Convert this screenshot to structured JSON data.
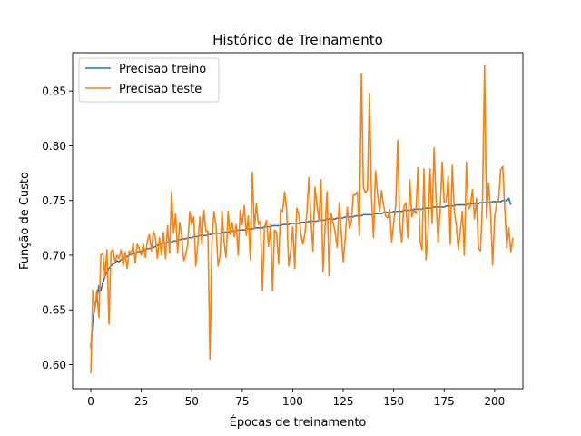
{
  "chart_data": {
    "type": "line",
    "title": "Histórico de Treinamento",
    "xlabel": "Épocas de treinamento",
    "ylabel": "Função de Custo",
    "xlim": [
      -9,
      214
    ],
    "ylim": [
      0.578,
      0.885
    ],
    "x_ticks": [
      0,
      25,
      50,
      75,
      100,
      125,
      150,
      175,
      200
    ],
    "y_ticks": [
      0.6,
      0.65,
      0.7,
      0.75,
      0.8,
      0.85
    ],
    "y_tick_labels": [
      "0.60",
      "0.65",
      "0.70",
      "0.75",
      "0.80",
      "0.85"
    ],
    "grid": false,
    "legend_position": "upper left",
    "x_start": 0,
    "series": [
      {
        "name": "Precisao treino",
        "color": "#1f77b4",
        "values": [
          0.615,
          0.64,
          0.652,
          0.66,
          0.672,
          0.668,
          0.675,
          0.68,
          0.685,
          0.688,
          0.69,
          0.692,
          0.693,
          0.695,
          0.694,
          0.696,
          0.697,
          0.698,
          0.699,
          0.7,
          0.701,
          0.701,
          0.702,
          0.703,
          0.703,
          0.704,
          0.704,
          0.705,
          0.706,
          0.706,
          0.707,
          0.707,
          0.708,
          0.709,
          0.71,
          0.71,
          0.711,
          0.711,
          0.712,
          0.712,
          0.712,
          0.713,
          0.713,
          0.714,
          0.714,
          0.715,
          0.715,
          0.715,
          0.716,
          0.716,
          0.716,
          0.717,
          0.717,
          0.717,
          0.718,
          0.718,
          0.718,
          0.718,
          0.719,
          0.719,
          0.719,
          0.72,
          0.72,
          0.72,
          0.72,
          0.721,
          0.721,
          0.721,
          0.721,
          0.722,
          0.722,
          0.722,
          0.722,
          0.723,
          0.723,
          0.723,
          0.723,
          0.724,
          0.724,
          0.724,
          0.724,
          0.725,
          0.725,
          0.725,
          0.725,
          0.725,
          0.726,
          0.726,
          0.726,
          0.726,
          0.727,
          0.727,
          0.727,
          0.727,
          0.727,
          0.728,
          0.728,
          0.728,
          0.728,
          0.729,
          0.729,
          0.729,
          0.729,
          0.729,
          0.73,
          0.73,
          0.73,
          0.73,
          0.731,
          0.731,
          0.731,
          0.731,
          0.731,
          0.732,
          0.732,
          0.732,
          0.732,
          0.733,
          0.733,
          0.733,
          0.733,
          0.733,
          0.734,
          0.734,
          0.734,
          0.734,
          0.735,
          0.735,
          0.735,
          0.735,
          0.735,
          0.736,
          0.736,
          0.736,
          0.736,
          0.737,
          0.737,
          0.737,
          0.737,
          0.737,
          0.738,
          0.738,
          0.738,
          0.738,
          0.738,
          0.739,
          0.739,
          0.739,
          0.739,
          0.739,
          0.74,
          0.74,
          0.74,
          0.74,
          0.74,
          0.741,
          0.741,
          0.741,
          0.741,
          0.741,
          0.742,
          0.742,
          0.742,
          0.742,
          0.742,
          0.743,
          0.743,
          0.743,
          0.743,
          0.743,
          0.744,
          0.744,
          0.744,
          0.744,
          0.744,
          0.744,
          0.745,
          0.745,
          0.745,
          0.745,
          0.745,
          0.746,
          0.746,
          0.746,
          0.746,
          0.746,
          0.746,
          0.747,
          0.747,
          0.747,
          0.747,
          0.747,
          0.747,
          0.748,
          0.748,
          0.748,
          0.748,
          0.748,
          0.748,
          0.749,
          0.749,
          0.749,
          0.749,
          0.749,
          0.75,
          0.75,
          0.75,
          0.752,
          0.746
        ]
      },
      {
        "name": "Precisao teste",
        "color": "#ff7f0e",
        "values": [
          0.592,
          0.668,
          0.65,
          0.668,
          0.643,
          0.7,
          0.702,
          0.68,
          0.705,
          0.637,
          0.703,
          0.705,
          0.694,
          0.7,
          0.697,
          0.705,
          0.69,
          0.703,
          0.688,
          0.704,
          0.7,
          0.711,
          0.693,
          0.71,
          0.706,
          0.7,
          0.71,
          0.698,
          0.713,
          0.719,
          0.704,
          0.722,
          0.716,
          0.697,
          0.716,
          0.7,
          0.721,
          0.697,
          0.727,
          0.702,
          0.758,
          0.72,
          0.738,
          0.702,
          0.73,
          0.718,
          0.695,
          0.7,
          0.71,
          0.74,
          0.728,
          0.735,
          0.69,
          0.71,
          0.735,
          0.71,
          0.741,
          0.722,
          0.722,
          0.605,
          0.712,
          0.74,
          0.728,
          0.69,
          0.7,
          0.74,
          0.712,
          0.698,
          0.74,
          0.719,
          0.73,
          0.717,
          0.728,
          0.7,
          0.741,
          0.728,
          0.745,
          0.718,
          0.736,
          0.696,
          0.776,
          0.724,
          0.747,
          0.728,
          0.731,
          0.668,
          0.725,
          0.732,
          0.708,
          0.728,
          0.668,
          0.723,
          0.721,
          0.692,
          0.742,
          0.74,
          0.758,
          0.741,
          0.69,
          0.704,
          0.726,
          0.688,
          0.743,
          0.738,
          0.72,
          0.71,
          0.719,
          0.739,
          0.771,
          0.733,
          0.704,
          0.762,
          0.746,
          0.732,
          0.769,
          0.685,
          0.726,
          0.758,
          0.681,
          0.738,
          0.73,
          0.721,
          0.707,
          0.748,
          0.722,
          0.694,
          0.716,
          0.744,
          0.725,
          0.73,
          0.755,
          0.755,
          0.758,
          0.718,
          0.866,
          0.762,
          0.757,
          0.76,
          0.848,
          0.754,
          0.716,
          0.777,
          0.756,
          0.74,
          0.759,
          0.745,
          0.736,
          0.734,
          0.742,
          0.712,
          0.73,
          0.745,
          0.805,
          0.729,
          0.712,
          0.744,
          0.748,
          0.716,
          0.769,
          0.735,
          0.741,
          0.738,
          0.78,
          0.713,
          0.705,
          0.779,
          0.696,
          0.72,
          0.779,
          0.729,
          0.798,
          0.749,
          0.712,
          0.741,
          0.785,
          0.748,
          0.749,
          0.772,
          0.71,
          0.782,
          0.741,
          0.727,
          0.705,
          0.722,
          0.74,
          0.7,
          0.785,
          0.742,
          0.745,
          0.76,
          0.733,
          0.752,
          0.706,
          0.704,
          0.75,
          0.873,
          0.734,
          0.766,
          0.739,
          0.691,
          0.735,
          0.747,
          0.751,
          0.778,
          0.781,
          0.743,
          0.707,
          0.725,
          0.703,
          0.716
        ]
      }
    ]
  }
}
